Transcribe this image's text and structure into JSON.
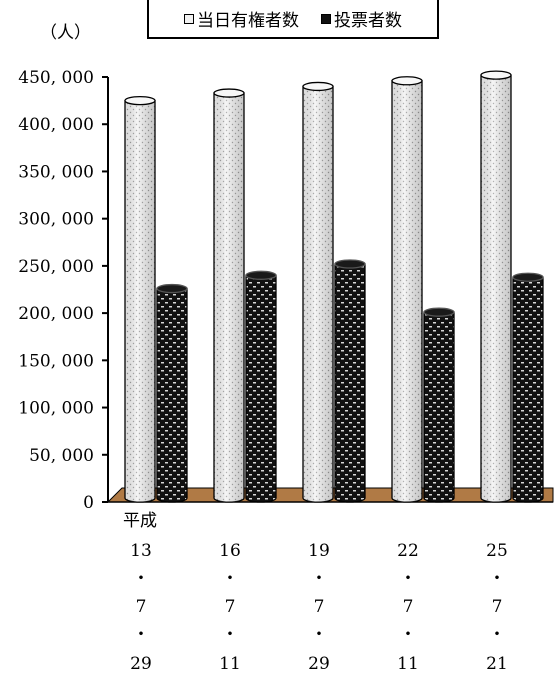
{
  "chart_data": {
    "type": "bar",
    "ylabel": "（人）",
    "ylim": [
      0,
      450000
    ],
    "y_ticks": [
      "450, 000",
      "400, 000",
      "350, 000",
      "300, 000",
      "250, 000",
      "200, 000",
      "150, 000",
      "100, 000",
      "50, 000",
      "0"
    ],
    "y_tick_values": [
      450000,
      400000,
      350000,
      300000,
      250000,
      200000,
      150000,
      100000,
      50000,
      0
    ],
    "era_label": "平成",
    "categories": [
      {
        "year": "13",
        "dot1": "・",
        "month": "7",
        "dot2": "・",
        "day": "29"
      },
      {
        "year": "16",
        "dot1": "・",
        "month": "7",
        "dot2": "・",
        "day": "11"
      },
      {
        "year": "19",
        "dot1": "・",
        "month": "7",
        "dot2": "・",
        "day": "29"
      },
      {
        "year": "22",
        "dot1": "・",
        "month": "7",
        "dot2": "・",
        "day": "11"
      },
      {
        "year": "25",
        "dot1": "・",
        "month": "7",
        "dot2": "・",
        "day": "21"
      }
    ],
    "series": [
      {
        "name": "当日有権者数",
        "color": "#f2f2f2",
        "values": [
          425000,
          433000,
          440000,
          446000,
          452000
        ]
      },
      {
        "name": "投票者数",
        "color": "#111111",
        "values": [
          226000,
          240000,
          252000,
          201000,
          238000
        ]
      }
    ],
    "floor_color": "#b07a45",
    "grid": false,
    "legend_position": "top-center"
  }
}
